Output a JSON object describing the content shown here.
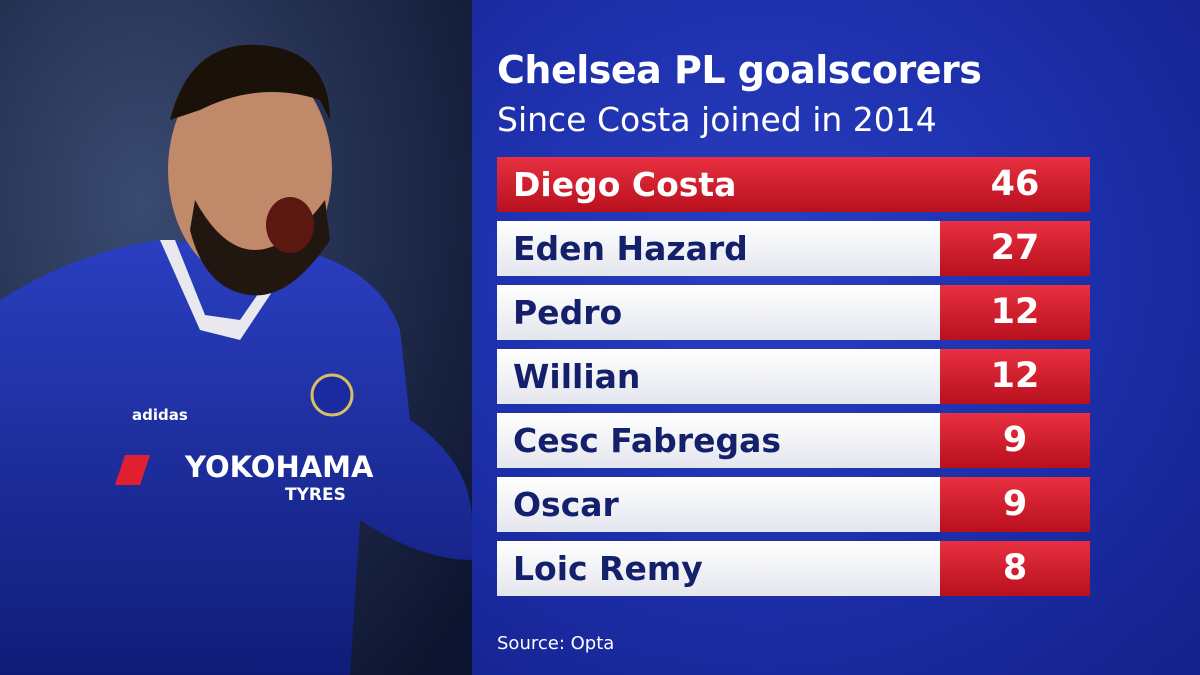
{
  "header": {
    "title": "Chelsea PL goalscorers",
    "subtitle": "Since Costa joined in 2014"
  },
  "table": {
    "rows": [
      [
        "Diego Costa",
        46
      ],
      [
        "Eden Hazard",
        27
      ],
      [
        "Pedro",
        12
      ],
      [
        "Willian",
        12
      ],
      [
        "Cesc Fabregas",
        9
      ],
      [
        "Oscar",
        9
      ],
      [
        "Loic Remy",
        8
      ]
    ]
  },
  "photo": {
    "sponsor": "YOKOHAMA",
    "sponsor_sub": "TYRES",
    "kit": "adidas"
  },
  "footer": {
    "source": "Source: Opta"
  }
}
